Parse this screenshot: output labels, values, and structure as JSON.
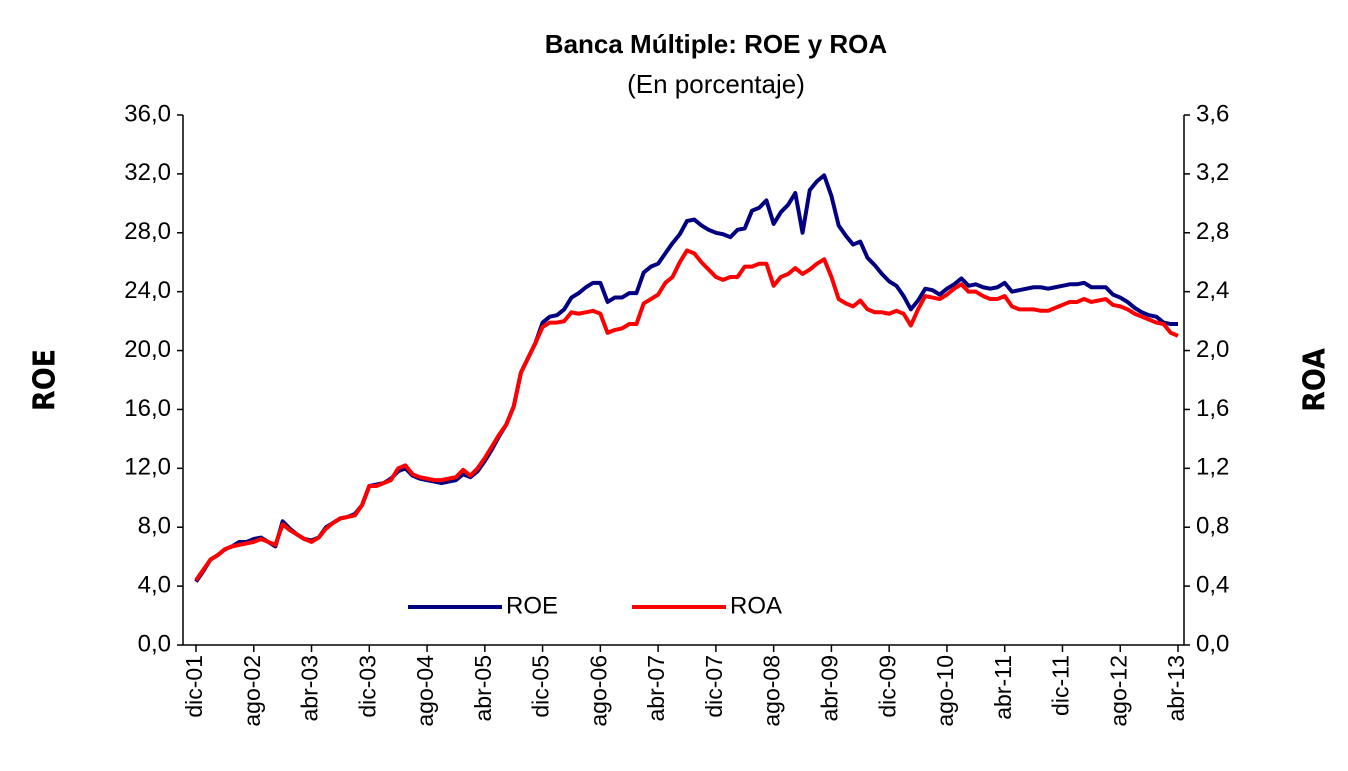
{
  "chart_data": {
    "type": "line",
    "title": "Banca Múltiple: ROE y ROA",
    "subtitle": "(En porcentaje)",
    "y_label": "ROE",
    "y2_label": "ROA",
    "categories": [
      "dic-01",
      null,
      null,
      null,
      null,
      null,
      null,
      null,
      "ago-02",
      null,
      null,
      null,
      null,
      null,
      null,
      null,
      "abr-03",
      null,
      null,
      null,
      null,
      null,
      null,
      null,
      "dic-03",
      null,
      null,
      null,
      null,
      null,
      null,
      null,
      "ago-04",
      null,
      null,
      null,
      null,
      null,
      null,
      null,
      "abr-05",
      null,
      null,
      null,
      null,
      null,
      null,
      null,
      "dic-05",
      null,
      null,
      null,
      null,
      null,
      null,
      null,
      "ago-06",
      null,
      null,
      null,
      null,
      null,
      null,
      null,
      "abr-07",
      null,
      null,
      null,
      null,
      null,
      null,
      null,
      "dic-07",
      null,
      null,
      null,
      null,
      null,
      null,
      null,
      "ago-08",
      null,
      null,
      null,
      null,
      null,
      null,
      null,
      "abr-09",
      null,
      null,
      null,
      null,
      null,
      null,
      null,
      "dic-09",
      null,
      null,
      null,
      null,
      null,
      null,
      null,
      "ago-10",
      null,
      null,
      null,
      null,
      null,
      null,
      null,
      "abr-11",
      null,
      null,
      null,
      null,
      null,
      null,
      null,
      "dic-11",
      null,
      null,
      null,
      null,
      null,
      null,
      null,
      "ago-12",
      null,
      null,
      null,
      null,
      null,
      null,
      null,
      "abr-13"
    ],
    "series": [
      {
        "name": "ROE",
        "color": "#000080",
        "axis": "y",
        "values": [
          4.3,
          5.0,
          5.8,
          6.1,
          6.5,
          6.7,
          7.0,
          7.0,
          7.2,
          7.3,
          7.0,
          6.7,
          8.4,
          7.9,
          7.5,
          7.2,
          7.1,
          7.3,
          8.0,
          8.3,
          8.6,
          8.7,
          8.9,
          9.5,
          10.8,
          10.9,
          11.0,
          11.3,
          11.8,
          12.0,
          11.5,
          11.3,
          11.2,
          11.1,
          11.0,
          11.1,
          11.2,
          11.6,
          11.4,
          11.8,
          12.5,
          13.3,
          14.2,
          15.0,
          16.2,
          18.5,
          19.5,
          20.5,
          21.9,
          22.3,
          22.4,
          22.8,
          23.6,
          23.9,
          24.3,
          24.6,
          24.6,
          23.3,
          23.6,
          23.6,
          23.9,
          23.9,
          25.3,
          25.7,
          25.9,
          26.6,
          27.3,
          27.9,
          28.8,
          28.9,
          28.5,
          28.2,
          28.0,
          27.9,
          27.7,
          28.2,
          28.3,
          29.5,
          29.7,
          30.2,
          28.6,
          29.4,
          29.9,
          30.7,
          28.0,
          30.9,
          31.5,
          31.9,
          30.5,
          28.5,
          27.8,
          27.2,
          27.4,
          26.3,
          25.8,
          25.2,
          24.7,
          24.4,
          23.7,
          22.8,
          23.4,
          24.2,
          24.1,
          23.8,
          24.2,
          24.5,
          24.9,
          24.4,
          24.5,
          24.3,
          24.2,
          24.3,
          24.6,
          24.0,
          24.1,
          24.2,
          24.3,
          24.3,
          24.2,
          24.3,
          24.4,
          24.5,
          24.5,
          24.6,
          24.3,
          24.3,
          24.3,
          23.8,
          23.6,
          23.3,
          22.9,
          22.6,
          22.4,
          22.3,
          21.9,
          21.8,
          21.8
        ]
      },
      {
        "name": "ROA",
        "color": "#ff0000",
        "axis": "y2",
        "values": [
          0.44,
          0.51,
          0.58,
          0.61,
          0.65,
          0.67,
          0.68,
          0.69,
          0.7,
          0.72,
          0.7,
          0.68,
          0.82,
          0.78,
          0.75,
          0.72,
          0.7,
          0.73,
          0.79,
          0.83,
          0.86,
          0.87,
          0.88,
          0.95,
          1.08,
          1.08,
          1.1,
          1.12,
          1.2,
          1.22,
          1.16,
          1.14,
          1.13,
          1.12,
          1.12,
          1.13,
          1.14,
          1.19,
          1.15,
          1.2,
          1.27,
          1.35,
          1.43,
          1.5,
          1.62,
          1.85,
          1.95,
          2.05,
          2.16,
          2.19,
          2.19,
          2.2,
          2.26,
          2.25,
          2.26,
          2.27,
          2.25,
          2.12,
          2.14,
          2.15,
          2.18,
          2.18,
          2.32,
          2.35,
          2.38,
          2.46,
          2.5,
          2.6,
          2.68,
          2.66,
          2.6,
          2.55,
          2.5,
          2.48,
          2.5,
          2.5,
          2.57,
          2.57,
          2.59,
          2.59,
          2.44,
          2.5,
          2.52,
          2.56,
          2.52,
          2.55,
          2.59,
          2.62,
          2.5,
          2.35,
          2.32,
          2.3,
          2.34,
          2.28,
          2.26,
          2.26,
          2.25,
          2.27,
          2.25,
          2.17,
          2.28,
          2.37,
          2.36,
          2.35,
          2.38,
          2.42,
          2.45,
          2.4,
          2.4,
          2.37,
          2.35,
          2.35,
          2.37,
          2.3,
          2.28,
          2.28,
          2.28,
          2.27,
          2.27,
          2.29,
          2.31,
          2.33,
          2.33,
          2.35,
          2.33,
          2.34,
          2.35,
          2.31,
          2.3,
          2.28,
          2.25,
          2.23,
          2.21,
          2.19,
          2.18,
          2.12,
          2.1
        ]
      }
    ],
    "ylim": [
      0,
      36
    ],
    "yticks": [
      {
        "value": 0,
        "label": "0,0"
      },
      {
        "value": 4,
        "label": "4,0"
      },
      {
        "value": 8,
        "label": "8,0"
      },
      {
        "value": 12,
        "label": "12,0"
      },
      {
        "value": 16,
        "label": "16,0"
      },
      {
        "value": 20,
        "label": "20,0"
      },
      {
        "value": 24,
        "label": "24,0"
      },
      {
        "value": 28,
        "label": "28,0"
      },
      {
        "value": 32,
        "label": "32,0"
      },
      {
        "value": 36,
        "label": "36,0"
      }
    ],
    "y2lim": [
      0,
      3.6
    ],
    "y2ticks": [
      {
        "value": 0,
        "label": "0,0"
      },
      {
        "value": 0.4,
        "label": "0,4"
      },
      {
        "value": 0.8,
        "label": "0,8"
      },
      {
        "value": 1.2,
        "label": "1,2"
      },
      {
        "value": 1.6,
        "label": "1,6"
      },
      {
        "value": 2.0,
        "label": "2,0"
      },
      {
        "value": 2.4,
        "label": "2,4"
      },
      {
        "value": 2.8,
        "label": "2,8"
      },
      {
        "value": 3.2,
        "label": "3,2"
      },
      {
        "value": 3.6,
        "label": "3,6"
      }
    ],
    "grid": false,
    "legend": "bottom"
  }
}
